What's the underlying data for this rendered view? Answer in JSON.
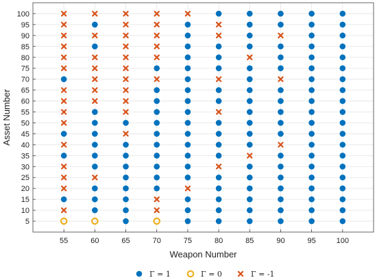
{
  "chart_data": {
    "type": "scatter",
    "xlabel": "Weapon Number",
    "ylabel": "Asset Number",
    "x_ticks": [
      55,
      60,
      65,
      70,
      75,
      80,
      85,
      90,
      95,
      100
    ],
    "y_ticks": [
      5,
      10,
      15,
      20,
      25,
      30,
      35,
      40,
      45,
      50,
      55,
      60,
      65,
      70,
      75,
      80,
      85,
      90,
      95,
      100
    ],
    "xlim": [
      50,
      105
    ],
    "ylim": [
      0,
      105
    ],
    "grid": true,
    "legend_position": "bottom",
    "series": [
      {
        "name": "Γ = 1",
        "marker": "filled-circle",
        "color": "#0072BD",
        "points": [
          [
            55,
            15
          ],
          [
            55,
            35
          ],
          [
            55,
            45
          ],
          [
            55,
            70
          ],
          [
            60,
            10
          ],
          [
            60,
            15
          ],
          [
            60,
            20
          ],
          [
            60,
            30
          ],
          [
            60,
            35
          ],
          [
            60,
            40
          ],
          [
            60,
            45
          ],
          [
            60,
            50
          ],
          [
            60,
            55
          ],
          [
            60,
            85
          ],
          [
            60,
            95
          ],
          [
            65,
            5
          ],
          [
            65,
            10
          ],
          [
            65,
            15
          ],
          [
            65,
            20
          ],
          [
            65,
            25
          ],
          [
            65,
            30
          ],
          [
            65,
            35
          ],
          [
            65,
            40
          ],
          [
            65,
            50
          ],
          [
            70,
            20
          ],
          [
            70,
            25
          ],
          [
            70,
            30
          ],
          [
            70,
            35
          ],
          [
            70,
            40
          ],
          [
            70,
            45
          ],
          [
            70,
            50
          ],
          [
            70,
            55
          ],
          [
            70,
            60
          ],
          [
            70,
            65
          ],
          [
            70,
            75
          ],
          [
            75,
            5
          ],
          [
            75,
            10
          ],
          [
            75,
            15
          ],
          [
            75,
            25
          ],
          [
            75,
            30
          ],
          [
            75,
            35
          ],
          [
            75,
            40
          ],
          [
            75,
            45
          ],
          [
            75,
            50
          ],
          [
            75,
            55
          ],
          [
            75,
            60
          ],
          [
            75,
            65
          ],
          [
            75,
            70
          ],
          [
            75,
            75
          ],
          [
            75,
            80
          ],
          [
            75,
            85
          ],
          [
            75,
            90
          ],
          [
            75,
            95
          ],
          [
            80,
            5
          ],
          [
            80,
            10
          ],
          [
            80,
            15
          ],
          [
            80,
            20
          ],
          [
            80,
            25
          ],
          [
            80,
            35
          ],
          [
            80,
            40
          ],
          [
            80,
            45
          ],
          [
            80,
            50
          ],
          [
            80,
            60
          ],
          [
            80,
            65
          ],
          [
            80,
            75
          ],
          [
            80,
            80
          ],
          [
            80,
            85
          ],
          [
            80,
            100
          ],
          [
            85,
            5
          ],
          [
            85,
            10
          ],
          [
            85,
            15
          ],
          [
            85,
            20
          ],
          [
            85,
            25
          ],
          [
            85,
            30
          ],
          [
            85,
            40
          ],
          [
            85,
            45
          ],
          [
            85,
            50
          ],
          [
            85,
            55
          ],
          [
            85,
            60
          ],
          [
            85,
            65
          ],
          [
            85,
            70
          ],
          [
            85,
            75
          ],
          [
            85,
            85
          ],
          [
            85,
            90
          ],
          [
            85,
            95
          ],
          [
            85,
            100
          ],
          [
            90,
            5
          ],
          [
            90,
            10
          ],
          [
            90,
            15
          ],
          [
            90,
            20
          ],
          [
            90,
            25
          ],
          [
            90,
            30
          ],
          [
            90,
            35
          ],
          [
            90,
            45
          ],
          [
            90,
            50
          ],
          [
            90,
            55
          ],
          [
            90,
            60
          ],
          [
            90,
            65
          ],
          [
            90,
            75
          ],
          [
            90,
            80
          ],
          [
            90,
            85
          ],
          [
            90,
            95
          ],
          [
            90,
            100
          ],
          [
            95,
            5
          ],
          [
            95,
            10
          ],
          [
            95,
            15
          ],
          [
            95,
            20
          ],
          [
            95,
            25
          ],
          [
            95,
            30
          ],
          [
            95,
            35
          ],
          [
            95,
            40
          ],
          [
            95,
            45
          ],
          [
            95,
            50
          ],
          [
            95,
            55
          ],
          [
            95,
            60
          ],
          [
            95,
            65
          ],
          [
            95,
            70
          ],
          [
            95,
            75
          ],
          [
            95,
            80
          ],
          [
            95,
            85
          ],
          [
            95,
            90
          ],
          [
            95,
            95
          ],
          [
            95,
            100
          ],
          [
            100,
            5
          ],
          [
            100,
            10
          ],
          [
            100,
            15
          ],
          [
            100,
            20
          ],
          [
            100,
            25
          ],
          [
            100,
            30
          ],
          [
            100,
            35
          ],
          [
            100,
            40
          ],
          [
            100,
            45
          ],
          [
            100,
            50
          ],
          [
            100,
            55
          ],
          [
            100,
            60
          ],
          [
            100,
            65
          ],
          [
            100,
            70
          ],
          [
            100,
            75
          ],
          [
            100,
            80
          ],
          [
            100,
            85
          ],
          [
            100,
            90
          ],
          [
            100,
            95
          ],
          [
            100,
            100
          ]
        ]
      },
      {
        "name": "Γ = 0",
        "marker": "open-circle",
        "color": "#EDB120",
        "points": [
          [
            55,
            5
          ],
          [
            60,
            5
          ],
          [
            70,
            5
          ]
        ]
      },
      {
        "name": "Γ = -1",
        "marker": "x",
        "color": "#D95319",
        "points": [
          [
            55,
            10
          ],
          [
            55,
            20
          ],
          [
            55,
            25
          ],
          [
            55,
            30
          ],
          [
            55,
            40
          ],
          [
            55,
            50
          ],
          [
            55,
            55
          ],
          [
            55,
            60
          ],
          [
            55,
            65
          ],
          [
            55,
            75
          ],
          [
            55,
            80
          ],
          [
            55,
            85
          ],
          [
            55,
            90
          ],
          [
            55,
            95
          ],
          [
            55,
            100
          ],
          [
            60,
            25
          ],
          [
            60,
            60
          ],
          [
            60,
            65
          ],
          [
            60,
            70
          ],
          [
            60,
            75
          ],
          [
            60,
            80
          ],
          [
            60,
            90
          ],
          [
            60,
            100
          ],
          [
            65,
            45
          ],
          [
            65,
            55
          ],
          [
            65,
            60
          ],
          [
            65,
            65
          ],
          [
            65,
            70
          ],
          [
            65,
            75
          ],
          [
            65,
            80
          ],
          [
            65,
            85
          ],
          [
            65,
            90
          ],
          [
            65,
            95
          ],
          [
            65,
            100
          ],
          [
            70,
            10
          ],
          [
            70,
            15
          ],
          [
            70,
            70
          ],
          [
            70,
            80
          ],
          [
            70,
            85
          ],
          [
            70,
            90
          ],
          [
            70,
            95
          ],
          [
            70,
            100
          ],
          [
            75,
            20
          ],
          [
            75,
            100
          ],
          [
            80,
            30
          ],
          [
            80,
            55
          ],
          [
            80,
            70
          ],
          [
            80,
            90
          ],
          [
            80,
            95
          ],
          [
            85,
            35
          ],
          [
            85,
            80
          ],
          [
            90,
            40
          ],
          [
            90,
            70
          ],
          [
            90,
            90
          ]
        ]
      }
    ]
  }
}
